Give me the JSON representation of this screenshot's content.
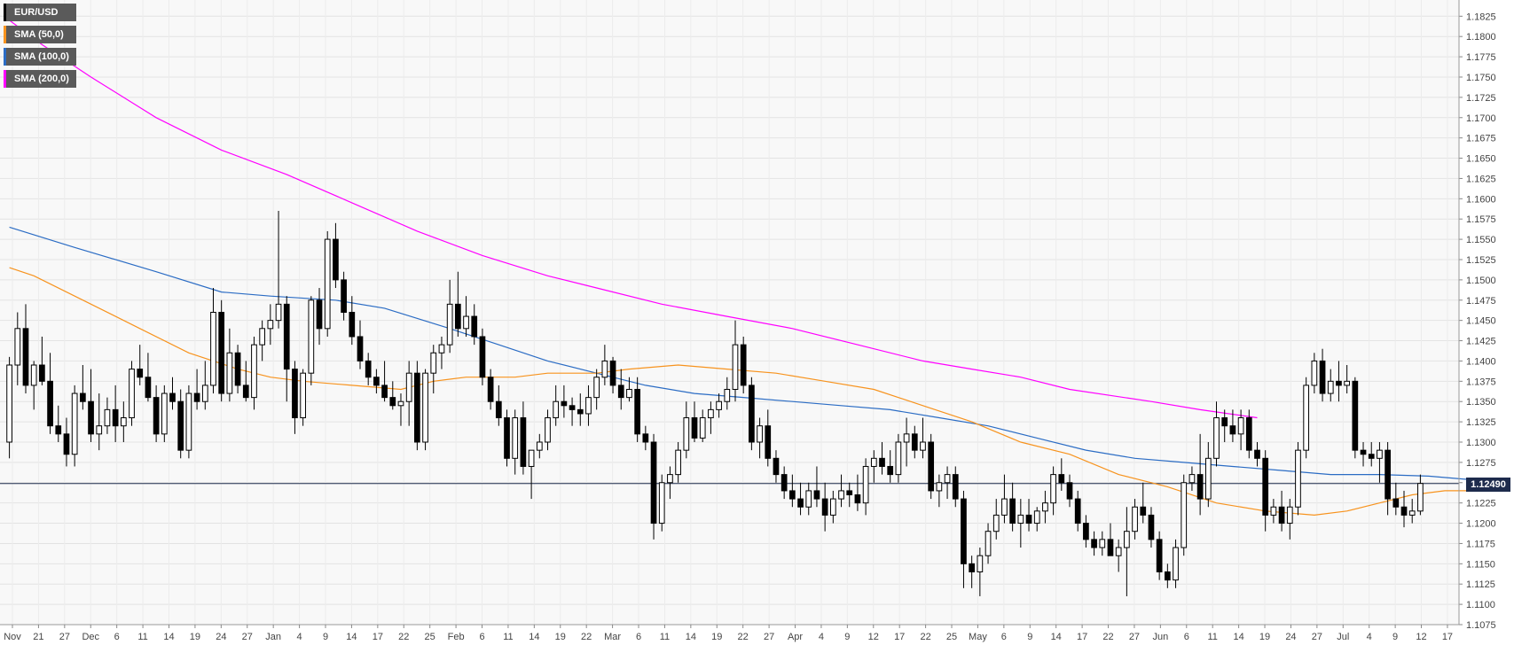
{
  "chart_data": {
    "type": "candlestick",
    "symbol": "EUR/USD",
    "current_price": "1.12490",
    "ylim": [
      1.1075,
      1.1845
    ],
    "y_ticks": [
      "1.1825",
      "1.1800",
      "1.1775",
      "1.1750",
      "1.1725",
      "1.1700",
      "1.1675",
      "1.1650",
      "1.1625",
      "1.1600",
      "1.1575",
      "1.1550",
      "1.1525",
      "1.1500",
      "1.1475",
      "1.1450",
      "1.1425",
      "1.1400",
      "1.1375",
      "1.1350",
      "1.1325",
      "1.1300",
      "1.1275",
      "1.1250",
      "1.1225",
      "1.1200",
      "1.1175",
      "1.1150",
      "1.1125",
      "1.1100",
      "1.1075"
    ],
    "x_ticks": [
      "Nov",
      "21",
      "27",
      "Dec",
      "6",
      "11",
      "14",
      "19",
      "24",
      "27",
      "Jan",
      "4",
      "9",
      "14",
      "17",
      "22",
      "25",
      "Feb",
      "6",
      "11",
      "14",
      "19",
      "22",
      "Mar",
      "6",
      "11",
      "14",
      "19",
      "22",
      "27",
      "Apr",
      "4",
      "9",
      "12",
      "17",
      "22",
      "25",
      "May",
      "6",
      "9",
      "14",
      "17",
      "22",
      "27",
      "Jun",
      "6",
      "11",
      "14",
      "19",
      "24",
      "27",
      "Jul",
      "4",
      "9",
      "12",
      "17"
    ],
    "legend": [
      {
        "label": "EUR/USD",
        "color": "#000000"
      },
      {
        "label": "SMA (50,0)",
        "color": "#f7931e"
      },
      {
        "label": "SMA (100,0)",
        "color": "#2b6cc4"
      },
      {
        "label": "SMA (200,0)",
        "color": "#ff00ff"
      }
    ],
    "grid": true,
    "legend_position": "top-left",
    "candles": [
      [
        1.13,
        1.1405,
        1.128,
        1.1395
      ],
      [
        1.1395,
        1.146,
        1.137,
        1.144
      ],
      [
        1.144,
        1.147,
        1.136,
        1.137
      ],
      [
        1.137,
        1.14,
        1.134,
        1.1395
      ],
      [
        1.1395,
        1.143,
        1.137,
        1.1375
      ],
      [
        1.1375,
        1.141,
        1.131,
        1.132
      ],
      [
        1.132,
        1.1345,
        1.13,
        1.131
      ],
      [
        1.131,
        1.133,
        1.127,
        1.1285
      ],
      [
        1.1285,
        1.137,
        1.127,
        1.136
      ],
      [
        1.136,
        1.1395,
        1.134,
        1.135
      ],
      [
        1.135,
        1.139,
        1.13,
        1.131
      ],
      [
        1.131,
        1.136,
        1.129,
        1.132
      ],
      [
        1.132,
        1.1355,
        1.131,
        1.134
      ],
      [
        1.134,
        1.137,
        1.13,
        1.132
      ],
      [
        1.132,
        1.135,
        1.13,
        1.133
      ],
      [
        1.133,
        1.14,
        1.132,
        1.139
      ],
      [
        1.139,
        1.142,
        1.137,
        1.138
      ],
      [
        1.138,
        1.141,
        1.135,
        1.1355
      ],
      [
        1.1355,
        1.137,
        1.13,
        1.131
      ],
      [
        1.131,
        1.137,
        1.13,
        1.136
      ],
      [
        1.136,
        1.138,
        1.134,
        1.135
      ],
      [
        1.135,
        1.1365,
        1.128,
        1.129
      ],
      [
        1.129,
        1.137,
        1.128,
        1.136
      ],
      [
        1.136,
        1.139,
        1.134,
        1.135
      ],
      [
        1.135,
        1.14,
        1.134,
        1.137
      ],
      [
        1.137,
        1.149,
        1.136,
        1.146
      ],
      [
        1.146,
        1.1475,
        1.135,
        1.136
      ],
      [
        1.136,
        1.144,
        1.135,
        1.141
      ],
      [
        1.141,
        1.142,
        1.136,
        1.137
      ],
      [
        1.137,
        1.14,
        1.135,
        1.1355
      ],
      [
        1.1355,
        1.143,
        1.134,
        1.142
      ],
      [
        1.142,
        1.145,
        1.14,
        1.144
      ],
      [
        1.144,
        1.147,
        1.142,
        1.145
      ],
      [
        1.145,
        1.1585,
        1.144,
        1.147
      ],
      [
        1.147,
        1.148,
        1.135,
        1.139
      ],
      [
        1.139,
        1.14,
        1.131,
        1.133
      ],
      [
        1.133,
        1.139,
        1.132,
        1.1385
      ],
      [
        1.1385,
        1.148,
        1.137,
        1.1475
      ],
      [
        1.1475,
        1.149,
        1.142,
        1.144
      ],
      [
        1.144,
        1.156,
        1.143,
        1.155
      ],
      [
        1.155,
        1.157,
        1.149,
        1.15
      ],
      [
        1.15,
        1.151,
        1.145,
        1.146
      ],
      [
        1.146,
        1.148,
        1.142,
        1.143
      ],
      [
        1.143,
        1.145,
        1.139,
        1.14
      ],
      [
        1.14,
        1.141,
        1.137,
        1.138
      ],
      [
        1.138,
        1.139,
        1.136,
        1.137
      ],
      [
        1.137,
        1.14,
        1.135,
        1.1355
      ],
      [
        1.1355,
        1.1375,
        1.134,
        1.1345
      ],
      [
        1.1345,
        1.136,
        1.132,
        1.135
      ],
      [
        1.135,
        1.14,
        1.132,
        1.1385
      ],
      [
        1.1385,
        1.14,
        1.129,
        1.13
      ],
      [
        1.13,
        1.139,
        1.129,
        1.1385
      ],
      [
        1.1385,
        1.142,
        1.136,
        1.141
      ],
      [
        1.141,
        1.143,
        1.139,
        1.142
      ],
      [
        1.142,
        1.15,
        1.141,
        1.147
      ],
      [
        1.147,
        1.151,
        1.143,
        1.144
      ],
      [
        1.144,
        1.148,
        1.143,
        1.1455
      ],
      [
        1.1455,
        1.147,
        1.142,
        1.143
      ],
      [
        1.143,
        1.144,
        1.137,
        1.138
      ],
      [
        1.138,
        1.139,
        1.134,
        1.135
      ],
      [
        1.135,
        1.137,
        1.132,
        1.133
      ],
      [
        1.133,
        1.134,
        1.127,
        1.128
      ],
      [
        1.128,
        1.134,
        1.126,
        1.133
      ],
      [
        1.133,
        1.135,
        1.126,
        1.127
      ],
      [
        1.127,
        1.129,
        1.123,
        1.129
      ],
      [
        1.129,
        1.131,
        1.128,
        1.13
      ],
      [
        1.13,
        1.134,
        1.129,
        1.133
      ],
      [
        1.133,
        1.137,
        1.132,
        1.135
      ],
      [
        1.135,
        1.137,
        1.133,
        1.1345
      ],
      [
        1.1345,
        1.1355,
        1.132,
        1.134
      ],
      [
        1.134,
        1.136,
        1.132,
        1.1335
      ],
      [
        1.1335,
        1.137,
        1.132,
        1.1355
      ],
      [
        1.1355,
        1.139,
        1.134,
        1.138
      ],
      [
        1.138,
        1.142,
        1.137,
        1.14
      ],
      [
        1.14,
        1.1405,
        1.136,
        1.137
      ],
      [
        1.137,
        1.139,
        1.134,
        1.1355
      ],
      [
        1.1355,
        1.138,
        1.135,
        1.1365
      ],
      [
        1.1365,
        1.138,
        1.13,
        1.131
      ],
      [
        1.131,
        1.132,
        1.129,
        1.13
      ],
      [
        1.13,
        1.131,
        1.118,
        1.12
      ],
      [
        1.12,
        1.126,
        1.119,
        1.125
      ],
      [
        1.125,
        1.127,
        1.123,
        1.126
      ],
      [
        1.126,
        1.13,
        1.125,
        1.129
      ],
      [
        1.129,
        1.135,
        1.128,
        1.133
      ],
      [
        1.133,
        1.135,
        1.13,
        1.1305
      ],
      [
        1.1305,
        1.134,
        1.13,
        1.133
      ],
      [
        1.133,
        1.135,
        1.131,
        1.134
      ],
      [
        1.134,
        1.136,
        1.133,
        1.135
      ],
      [
        1.135,
        1.138,
        1.134,
        1.1365
      ],
      [
        1.1365,
        1.145,
        1.135,
        1.142
      ],
      [
        1.142,
        1.143,
        1.136,
        1.137
      ],
      [
        1.137,
        1.138,
        1.129,
        1.13
      ],
      [
        1.13,
        1.133,
        1.128,
        1.132
      ],
      [
        1.132,
        1.134,
        1.127,
        1.128
      ],
      [
        1.128,
        1.129,
        1.125,
        1.126
      ],
      [
        1.126,
        1.127,
        1.123,
        1.124
      ],
      [
        1.124,
        1.126,
        1.122,
        1.123
      ],
      [
        1.123,
        1.125,
        1.121,
        1.122
      ],
      [
        1.122,
        1.125,
        1.121,
        1.124
      ],
      [
        1.124,
        1.127,
        1.122,
        1.123
      ],
      [
        1.123,
        1.125,
        1.119,
        1.121
      ],
      [
        1.121,
        1.124,
        1.12,
        1.123
      ],
      [
        1.123,
        1.126,
        1.122,
        1.124
      ],
      [
        1.124,
        1.125,
        1.122,
        1.1235
      ],
      [
        1.1235,
        1.126,
        1.1215,
        1.1225
      ],
      [
        1.1225,
        1.128,
        1.121,
        1.127
      ],
      [
        1.127,
        1.129,
        1.125,
        1.128
      ],
      [
        1.128,
        1.13,
        1.126,
        1.127
      ],
      [
        1.127,
        1.129,
        1.125,
        1.126
      ],
      [
        1.126,
        1.131,
        1.125,
        1.13
      ],
      [
        1.13,
        1.133,
        1.127,
        1.131
      ],
      [
        1.131,
        1.132,
        1.128,
        1.129
      ],
      [
        1.129,
        1.133,
        1.128,
        1.13
      ],
      [
        1.13,
        1.131,
        1.123,
        1.124
      ],
      [
        1.124,
        1.126,
        1.122,
        1.125
      ],
      [
        1.125,
        1.127,
        1.123,
        1.126
      ],
      [
        1.126,
        1.127,
        1.122,
        1.123
      ],
      [
        1.123,
        1.124,
        1.112,
        1.115
      ],
      [
        1.115,
        1.116,
        1.112,
        1.114
      ],
      [
        1.114,
        1.117,
        1.111,
        1.116
      ],
      [
        1.116,
        1.12,
        1.115,
        1.119
      ],
      [
        1.119,
        1.123,
        1.118,
        1.121
      ],
      [
        1.121,
        1.126,
        1.12,
        1.123
      ],
      [
        1.123,
        1.125,
        1.119,
        1.12
      ],
      [
        1.12,
        1.123,
        1.117,
        1.121
      ],
      [
        1.121,
        1.123,
        1.119,
        1.12
      ],
      [
        1.12,
        1.122,
        1.119,
        1.1215
      ],
      [
        1.1215,
        1.124,
        1.12,
        1.1225
      ],
      [
        1.1225,
        1.127,
        1.121,
        1.126
      ],
      [
        1.126,
        1.128,
        1.124,
        1.125
      ],
      [
        1.125,
        1.126,
        1.122,
        1.123
      ],
      [
        1.123,
        1.124,
        1.119,
        1.12
      ],
      [
        1.12,
        1.121,
        1.117,
        1.118
      ],
      [
        1.118,
        1.119,
        1.116,
        1.117
      ],
      [
        1.117,
        1.119,
        1.116,
        1.118
      ],
      [
        1.118,
        1.12,
        1.116,
        1.116
      ],
      [
        1.116,
        1.118,
        1.114,
        1.117
      ],
      [
        1.117,
        1.122,
        1.111,
        1.119
      ],
      [
        1.119,
        1.123,
        1.118,
        1.122
      ],
      [
        1.122,
        1.125,
        1.12,
        1.121
      ],
      [
        1.121,
        1.122,
        1.117,
        1.118
      ],
      [
        1.118,
        1.119,
        1.113,
        1.114
      ],
      [
        1.114,
        1.115,
        1.112,
        1.113
      ],
      [
        1.113,
        1.118,
        1.112,
        1.117
      ],
      [
        1.117,
        1.126,
        1.116,
        1.125
      ],
      [
        1.125,
        1.127,
        1.124,
        1.126
      ],
      [
        1.126,
        1.131,
        1.121,
        1.123
      ],
      [
        1.123,
        1.13,
        1.122,
        1.128
      ],
      [
        1.128,
        1.135,
        1.127,
        1.133
      ],
      [
        1.133,
        1.134,
        1.13,
        1.132
      ],
      [
        1.132,
        1.134,
        1.13,
        1.131
      ],
      [
        1.131,
        1.134,
        1.129,
        1.133
      ],
      [
        1.133,
        1.134,
        1.128,
        1.129
      ],
      [
        1.129,
        1.13,
        1.127,
        1.128
      ],
      [
        1.128,
        1.129,
        1.119,
        1.121
      ],
      [
        1.121,
        1.123,
        1.12,
        1.122
      ],
      [
        1.122,
        1.124,
        1.119,
        1.12
      ],
      [
        1.12,
        1.123,
        1.118,
        1.122
      ],
      [
        1.122,
        1.13,
        1.121,
        1.129
      ],
      [
        1.129,
        1.138,
        1.128,
        1.137
      ],
      [
        1.137,
        1.141,
        1.136,
        1.14
      ],
      [
        1.14,
        1.1415,
        1.135,
        1.136
      ],
      [
        1.136,
        1.139,
        1.135,
        1.1375
      ],
      [
        1.1375,
        1.14,
        1.135,
        1.137
      ],
      [
        1.137,
        1.1395,
        1.136,
        1.1375
      ],
      [
        1.1375,
        1.138,
        1.128,
        1.129
      ],
      [
        1.129,
        1.13,
        1.127,
        1.1285
      ],
      [
        1.1285,
        1.13,
        1.127,
        1.128
      ],
      [
        1.128,
        1.13,
        1.125,
        1.129
      ],
      [
        1.129,
        1.13,
        1.121,
        1.123
      ],
      [
        1.123,
        1.125,
        1.121,
        1.122
      ],
      [
        1.122,
        1.124,
        1.1195,
        1.121
      ],
      [
        1.121,
        1.123,
        1.12,
        1.1215
      ],
      [
        1.1215,
        1.126,
        1.121,
        1.1249
      ]
    ],
    "sma_50": [
      [
        1.1515,
        0
      ],
      [
        1.1505,
        3
      ],
      [
        1.147,
        10
      ],
      [
        1.144,
        16
      ],
      [
        1.141,
        22
      ],
      [
        1.139,
        28
      ],
      [
        1.138,
        32
      ],
      [
        1.1375,
        36
      ],
      [
        1.137,
        42
      ],
      [
        1.1365,
        48
      ],
      [
        1.1375,
        52
      ],
      [
        1.138,
        56
      ],
      [
        1.138,
        62
      ],
      [
        1.1385,
        66
      ],
      [
        1.1385,
        72
      ],
      [
        1.139,
        76
      ],
      [
        1.1395,
        82
      ],
      [
        1.139,
        88
      ],
      [
        1.1385,
        94
      ],
      [
        1.1375,
        100
      ],
      [
        1.1365,
        106
      ],
      [
        1.1345,
        112
      ],
      [
        1.1325,
        118
      ],
      [
        1.13,
        124
      ],
      [
        1.1285,
        130
      ],
      [
        1.126,
        136
      ],
      [
        1.1245,
        142
      ],
      [
        1.1225,
        148
      ],
      [
        1.1215,
        154
      ],
      [
        1.121,
        160
      ],
      [
        1.1215,
        164
      ],
      [
        1.1225,
        168
      ],
      [
        1.1235,
        172
      ],
      [
        1.124,
        176
      ],
      [
        1.124,
        180
      ]
    ],
    "sma_100": [
      [
        1.1565,
        0
      ],
      [
        1.154,
        8
      ],
      [
        1.151,
        18
      ],
      [
        1.1485,
        26
      ],
      [
        1.148,
        32
      ],
      [
        1.1475,
        40
      ],
      [
        1.1465,
        46
      ],
      [
        1.144,
        54
      ],
      [
        1.142,
        60
      ],
      [
        1.14,
        66
      ],
      [
        1.1385,
        72
      ],
      [
        1.137,
        78
      ],
      [
        1.136,
        84
      ],
      [
        1.1355,
        90
      ],
      [
        1.135,
        96
      ],
      [
        1.1345,
        102
      ],
      [
        1.134,
        108
      ],
      [
        1.133,
        114
      ],
      [
        1.132,
        120
      ],
      [
        1.1305,
        126
      ],
      [
        1.129,
        132
      ],
      [
        1.128,
        138
      ],
      [
        1.1275,
        144
      ],
      [
        1.127,
        150
      ],
      [
        1.1265,
        156
      ],
      [
        1.126,
        162
      ],
      [
        1.126,
        168
      ],
      [
        1.1258,
        174
      ],
      [
        1.1253,
        180
      ]
    ],
    "sma_200": [
      [
        1.182,
        0
      ],
      [
        1.179,
        4
      ],
      [
        1.175,
        10
      ],
      [
        1.17,
        18
      ],
      [
        1.166,
        26
      ],
      [
        1.163,
        34
      ],
      [
        1.1595,
        42
      ],
      [
        1.156,
        50
      ],
      [
        1.153,
        58
      ],
      [
        1.1505,
        66
      ],
      [
        1.149,
        72
      ],
      [
        1.147,
        80
      ],
      [
        1.1455,
        88
      ],
      [
        1.144,
        96
      ],
      [
        1.142,
        104
      ],
      [
        1.14,
        112
      ],
      [
        1.139,
        118
      ],
      [
        1.138,
        124
      ],
      [
        1.1365,
        130
      ],
      [
        1.135,
        140
      ],
      [
        1.134,
        146
      ],
      [
        1.133,
        153
      ]
    ]
  }
}
